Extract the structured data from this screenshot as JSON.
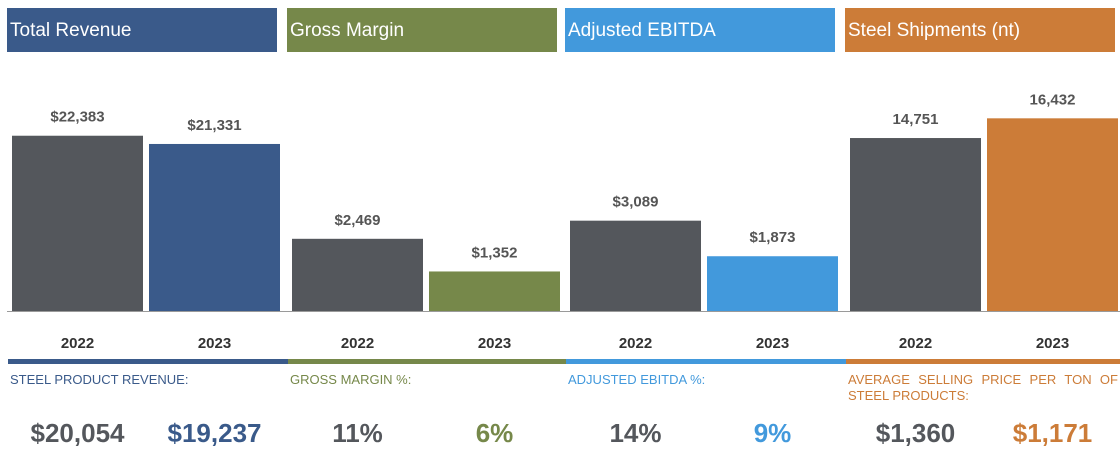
{
  "chart_data": [
    {
      "type": "bar",
      "title": "Total Revenue",
      "categories": [
        "2022",
        "2023"
      ],
      "values": [
        22383,
        21331
      ],
      "value_labels": [
        "$22,383",
        "$21,331"
      ],
      "colors": [
        "#54575c",
        "#3a5a8a"
      ],
      "ylim": [
        0,
        29500
      ],
      "footer_label": "STEEL PRODUCT REVENUE:",
      "footer_values": [
        "$20,054",
        "$19,237"
      ]
    },
    {
      "type": "bar",
      "title": "Gross Margin",
      "categories": [
        "2022",
        "2023"
      ],
      "values": [
        2469,
        1352
      ],
      "value_labels": [
        "$2,469",
        "$1,352"
      ],
      "colors": [
        "#54575c",
        "#76884a"
      ],
      "ylim": [
        0,
        7900
      ],
      "footer_label": "GROSS MARGIN %:",
      "footer_values": [
        "11%",
        "6%"
      ]
    },
    {
      "type": "bar",
      "title": "Adjusted EBITDA",
      "categories": [
        "2022",
        "2023"
      ],
      "values": [
        3089,
        1873
      ],
      "value_labels": [
        "$3,089",
        "$1,873"
      ],
      "colors": [
        "#54575c",
        "#4299dc"
      ],
      "ylim": [
        0,
        7900
      ],
      "footer_label": "ADJUSTED EBITDA %:",
      "footer_values": [
        "14%",
        "9%"
      ]
    },
    {
      "type": "bar",
      "title": "Steel Shipments (nt)",
      "categories": [
        "2022",
        "2023"
      ],
      "values": [
        14751,
        16432
      ],
      "value_labels": [
        "14,751",
        "16,432"
      ],
      "colors": [
        "#54575c",
        "#cc7c38"
      ],
      "ylim": [
        0,
        19700
      ],
      "footer_label": "AVERAGE SELLING PRICE PER TON OF STEEL PRODUCTS:",
      "footer_values": [
        "$1,360",
        "$1,171"
      ]
    }
  ]
}
